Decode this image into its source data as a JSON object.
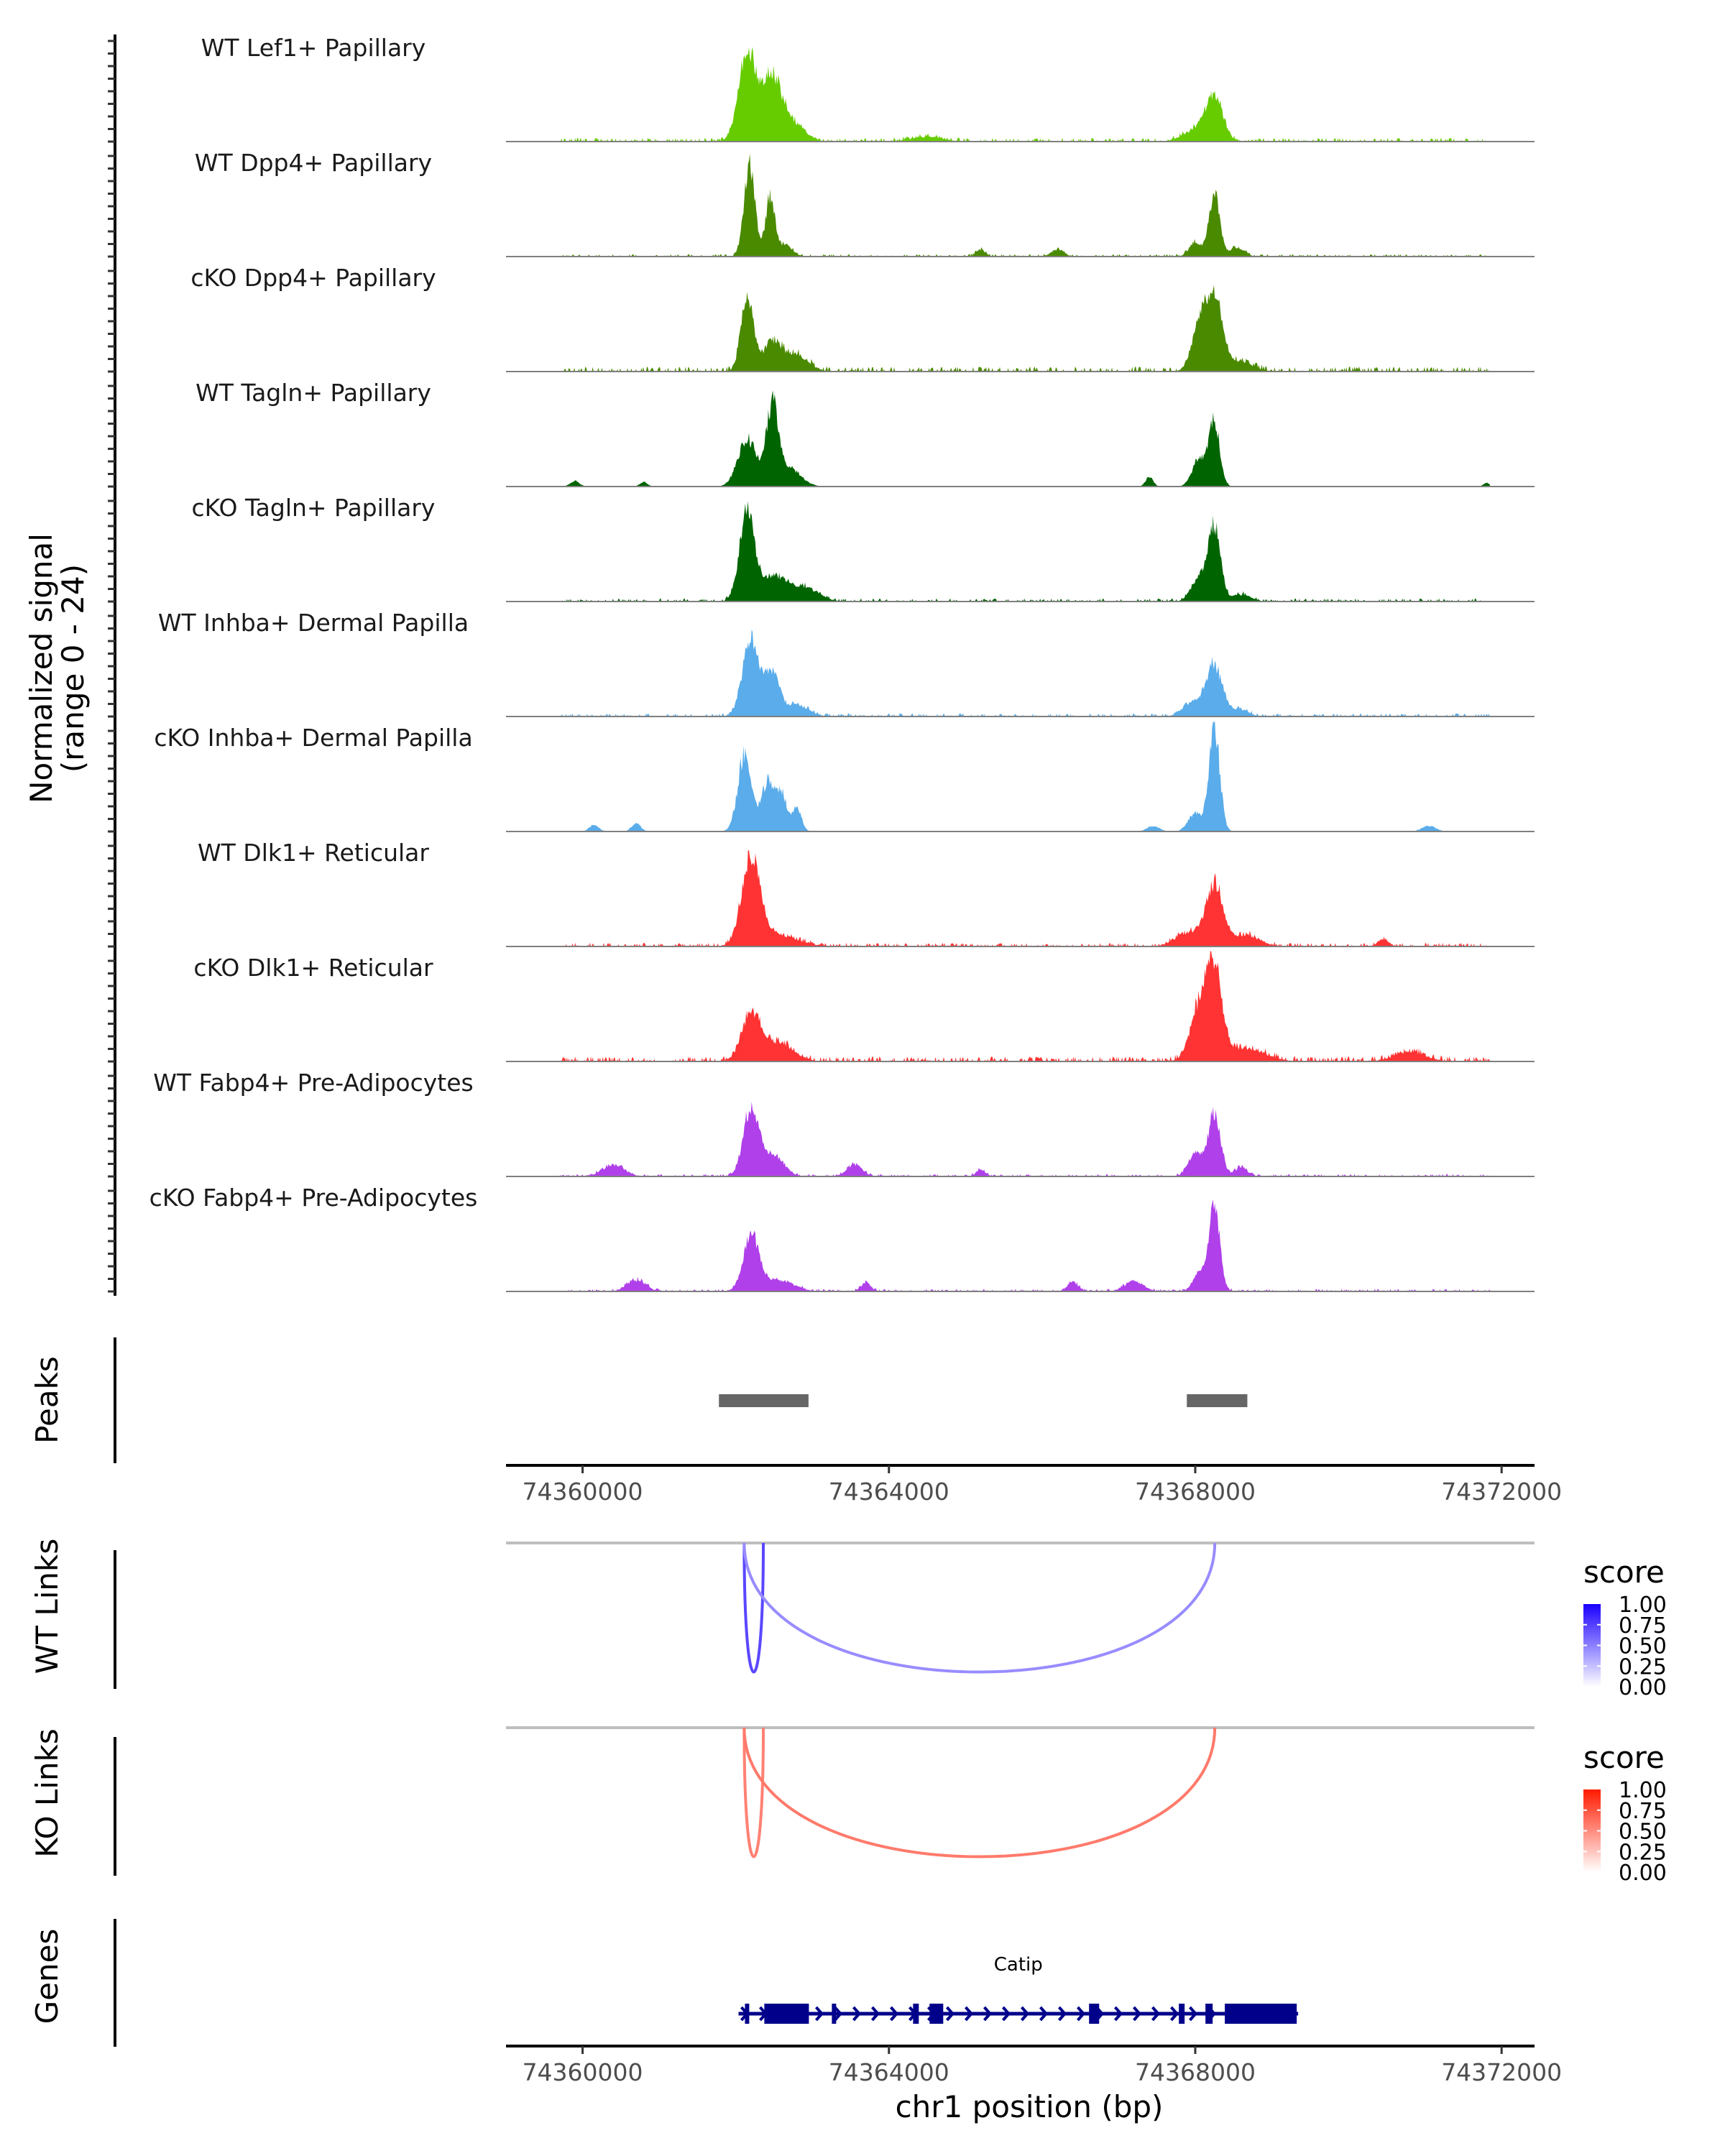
{
  "chart_data": {
    "type": "area",
    "title": "",
    "chromosome": "chr1",
    "xlabel": "chr1 position (bp)",
    "ylabel_line1": "Normalized signal",
    "ylabel_line2": "(range 0 - 24)",
    "xlim": [
      74359000,
      74372430
    ],
    "ylim": [
      0,
      24
    ],
    "x_ticks": [
      74360000,
      74364000,
      74368000,
      74372000
    ],
    "x_tick_labels": [
      "74360000",
      "74364000",
      "74368000",
      "74372000"
    ],
    "tracks": [
      {
        "name": "WT Lef1+ Papillary",
        "color": "#66cc00",
        "peaks": [
          [
            74362150,
            20,
            110
          ],
          [
            74362470,
            14,
            120
          ],
          [
            74362750,
            4,
            150
          ],
          [
            74368250,
            9.5,
            110
          ],
          [
            74368000,
            2.5,
            160
          ],
          [
            74364500,
            1,
            200
          ]
        ],
        "noise": 0.6
      },
      {
        "name": "WT Dpp4+ Papillary",
        "color": "#4a8a00",
        "peaks": [
          [
            74362180,
            20,
            70
          ],
          [
            74362450,
            13,
            60
          ],
          [
            74362650,
            2.5,
            90
          ],
          [
            74368250,
            13,
            70
          ],
          [
            74368000,
            3,
            80
          ],
          [
            74368550,
            2,
            90
          ],
          [
            74365200,
            1.5,
            60
          ],
          [
            74366200,
            1.5,
            80
          ]
        ],
        "noise": 0.4
      },
      {
        "name": "cKO Dpp4+ Papillary",
        "color": "#4a8a00",
        "peaks": [
          [
            74362150,
            16,
            80
          ],
          [
            74362480,
            6.5,
            120
          ],
          [
            74362800,
            3.5,
            150
          ],
          [
            74368250,
            15,
            110
          ],
          [
            74368050,
            9,
            100
          ],
          [
            74368600,
            2,
            160
          ]
        ],
        "noise": 0.8
      },
      {
        "name": "WT Tagln+ Papillary",
        "color": "#006400",
        "peaks": [
          [
            74362150,
            10.5,
            120
          ],
          [
            74362480,
            17,
            80
          ],
          [
            74362700,
            4,
            150
          ],
          [
            74368250,
            14,
            70
          ],
          [
            74368050,
            6,
            90
          ],
          [
            74367400,
            2,
            50
          ],
          [
            74359900,
            1.2,
            60
          ],
          [
            74360800,
            1,
            50
          ],
          [
            74371800,
            0.8,
            40
          ]
        ],
        "noise": 0.0
      },
      {
        "name": "cKO Tagln+ Papillary",
        "color": "#006400",
        "peaks": [
          [
            74362150,
            19,
            100
          ],
          [
            74362500,
            5.5,
            150
          ],
          [
            74362900,
            3,
            180
          ],
          [
            74368250,
            16,
            80
          ],
          [
            74368050,
            5,
            100
          ],
          [
            74368600,
            1.5,
            120
          ]
        ],
        "noise": 0.5
      },
      {
        "name": "WT Inhba+ Dermal Papilla",
        "color": "#5aacea",
        "peaks": [
          [
            74362200,
            16.5,
            110
          ],
          [
            74362480,
            9.5,
            90
          ],
          [
            74362800,
            2.5,
            150
          ],
          [
            74368250,
            11,
            110
          ],
          [
            74367950,
            3,
            120
          ],
          [
            74368600,
            1.5,
            100
          ]
        ],
        "noise": 0.5
      },
      {
        "name": "cKO Inhba+ Dermal Papilla",
        "color": "#5aacea",
        "peaks": [
          [
            74362120,
            17,
            90
          ],
          [
            74362420,
            11,
            80
          ],
          [
            74362600,
            8,
            70
          ],
          [
            74362800,
            5,
            60
          ],
          [
            74368250,
            22.5,
            70
          ],
          [
            74368000,
            4,
            90
          ],
          [
            74360150,
            1.5,
            60
          ],
          [
            74360700,
            1.8,
            60
          ],
          [
            74367450,
            1.2,
            80
          ],
          [
            74371050,
            1.2,
            90
          ]
        ],
        "noise": 0.0
      },
      {
        "name": "WT Dlk1+ Reticular",
        "color": "#ff3333",
        "peaks": [
          [
            74362200,
            19,
            120
          ],
          [
            74362550,
            2.5,
            250
          ],
          [
            74368250,
            13.5,
            110
          ],
          [
            74367900,
            3,
            160
          ],
          [
            74368650,
            2.5,
            180
          ],
          [
            74370450,
            1.5,
            70
          ]
        ],
        "noise": 0.6
      },
      {
        "name": "cKO Dlk1+ Reticular",
        "color": "#ff3333",
        "peaks": [
          [
            74362200,
            10,
            120
          ],
          [
            74362550,
            4,
            200
          ],
          [
            74368250,
            18.5,
            100
          ],
          [
            74368050,
            11,
            120
          ],
          [
            74368650,
            3,
            250
          ],
          [
            74370800,
            2,
            200
          ]
        ],
        "noise": 0.8
      },
      {
        "name": "WT Fabp4+ Pre-Adipocytes",
        "color": "#b040ea",
        "peaks": [
          [
            74362200,
            15,
            100
          ],
          [
            74362500,
            4.5,
            130
          ],
          [
            74368250,
            14,
            80
          ],
          [
            74368000,
            5,
            90
          ],
          [
            74360400,
            2.5,
            140
          ],
          [
            74363550,
            2.5,
            100
          ],
          [
            74365200,
            1.5,
            60
          ],
          [
            74368600,
            2,
            80
          ]
        ],
        "noise": 0.4
      },
      {
        "name": "cKO Fabp4+ Pre-Adipocytes",
        "color": "#b040ea",
        "peaks": [
          [
            74362200,
            12,
            100
          ],
          [
            74362550,
            2.5,
            200
          ],
          [
            74368250,
            19,
            70
          ],
          [
            74368050,
            4,
            80
          ],
          [
            74360700,
            2.5,
            120
          ],
          [
            74363700,
            2,
            60
          ],
          [
            74366400,
            2,
            70
          ],
          [
            74367200,
            2.2,
            120
          ]
        ],
        "noise": 0.4
      }
    ],
    "peaks": {
      "label": "Peaks",
      "color": "#666666",
      "regions": [
        [
          74361780,
          74362950
        ],
        [
          74367890,
          74368680
        ]
      ]
    },
    "links": [
      {
        "label": "WT Links",
        "legend_title": "score",
        "low_color": "#ffffff",
        "high_color": "#1a00ff",
        "items": [
          {
            "start": 74362110,
            "end": 74362360,
            "score": 0.72
          },
          {
            "start": 74362110,
            "end": 74368255,
            "score": 0.45
          }
        ]
      },
      {
        "label": "KO Links",
        "legend_title": "score",
        "low_color": "#ffffff",
        "high_color": "#ff1a00",
        "items": [
          {
            "start": 74362110,
            "end": 74362360,
            "score": 0.55
          },
          {
            "start": 74362110,
            "end": 74368255,
            "score": 0.58
          }
        ]
      }
    ],
    "legend_ticks": [
      "1.00",
      "0.75",
      "0.50",
      "0.25",
      "0.00"
    ],
    "genes": {
      "label": "Genes",
      "color": "#00008b",
      "items": [
        {
          "name": "Catip",
          "strand": "+",
          "start": 74362036,
          "end": 74369343,
          "exons": [
            [
              74362120,
              74362176
            ],
            [
              74362373,
              74362955
            ],
            [
              74363255,
              74363311
            ],
            [
              74364315,
              74364390
            ],
            [
              74364531,
              74364709
            ],
            [
              74366613,
              74366745
            ],
            [
              74367786,
              74367861
            ],
            [
              74368133,
              74368227
            ],
            [
              74368386,
              74369325
            ]
          ]
        }
      ]
    }
  }
}
